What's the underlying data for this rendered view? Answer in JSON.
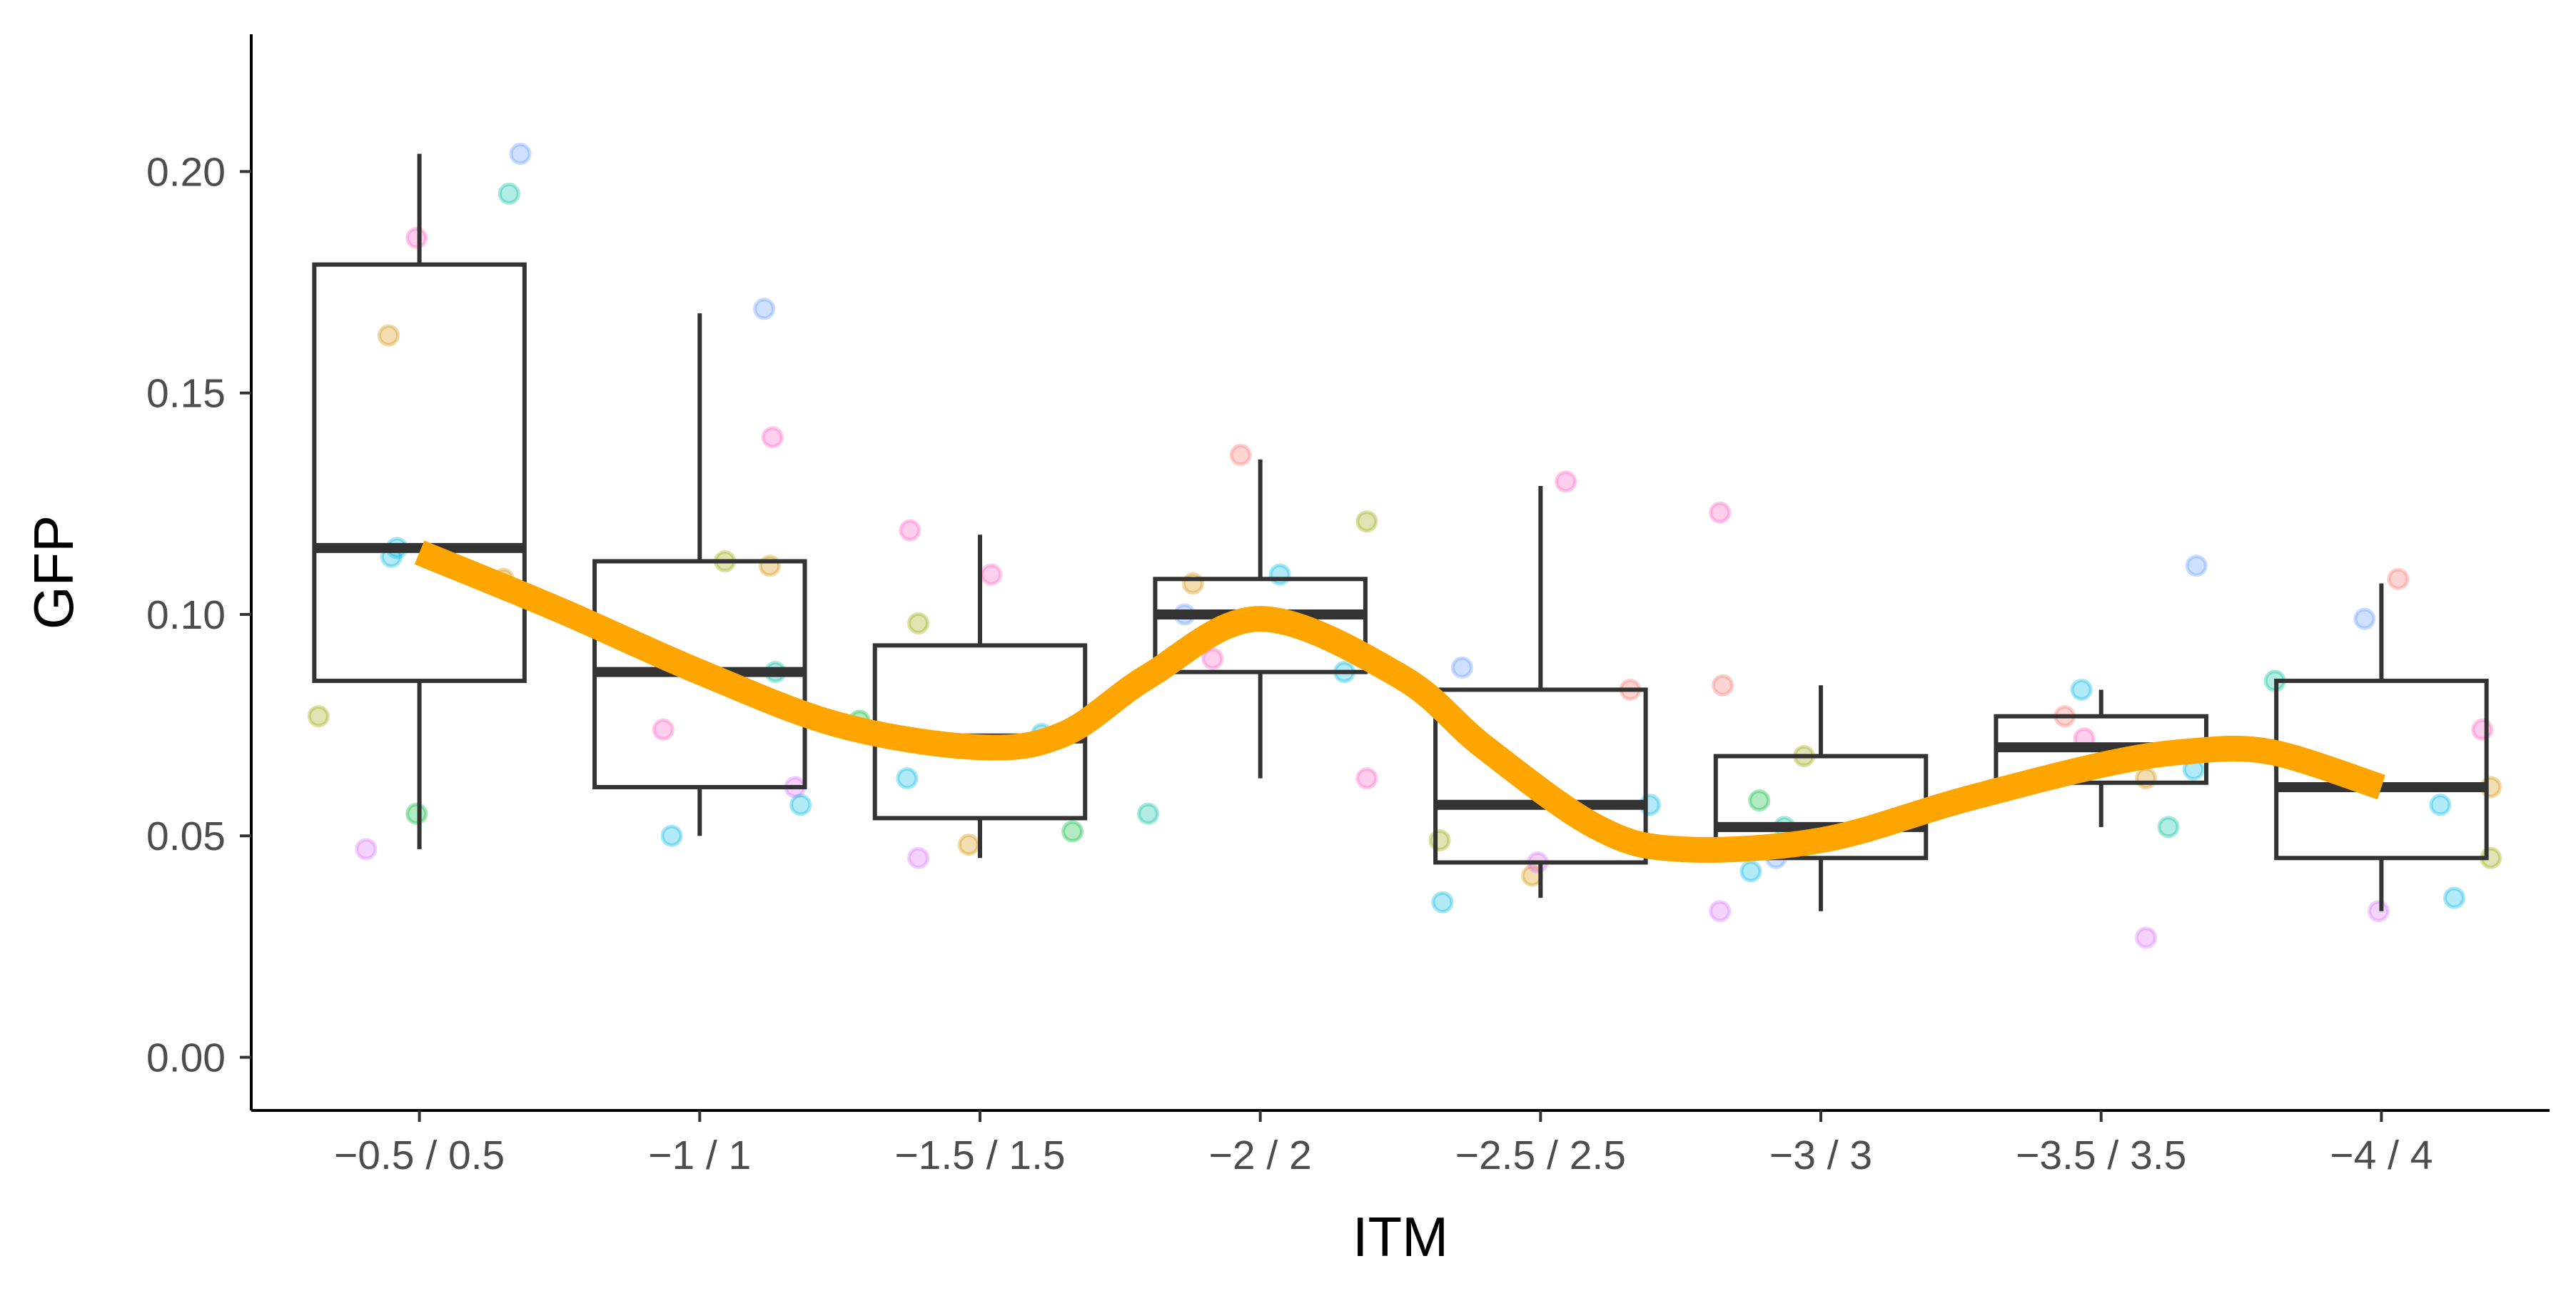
{
  "chart_data": {
    "type": "box",
    "xlabel": "ITM",
    "ylabel": "GFP",
    "ylim": [
      -0.012,
      0.231
    ],
    "y_ticks": [
      0.0,
      0.05,
      0.1,
      0.15,
      0.2
    ],
    "y_tick_labels": [
      "0.00",
      "0.05",
      "0.10",
      "0.15",
      "0.20"
    ],
    "grid": false,
    "legend": "none",
    "categories": [
      "−0.5 / 0.5",
      "−1 / 1",
      "−1.5 / 1.5",
      "−2 / 2",
      "−2.5 / 2.5",
      "−3 / 3",
      "−3.5 / 3.5",
      "−4 / 4"
    ],
    "boxes": [
      {
        "lower": 0.047,
        "q1": 0.085,
        "median": 0.115,
        "q3": 0.179,
        "upper": 0.204
      },
      {
        "lower": 0.05,
        "q1": 0.061,
        "median": 0.087,
        "q3": 0.112,
        "upper": 0.168
      },
      {
        "lower": 0.045,
        "q1": 0.054,
        "median": 0.072,
        "q3": 0.093,
        "upper": 0.118
      },
      {
        "lower": 0.063,
        "q1": 0.087,
        "median": 0.1,
        "q3": 0.108,
        "upper": 0.135
      },
      {
        "lower": 0.036,
        "q1": 0.044,
        "median": 0.057,
        "q3": 0.083,
        "upper": 0.129
      },
      {
        "lower": 0.033,
        "q1": 0.045,
        "median": 0.052,
        "q3": 0.068,
        "upper": 0.084
      },
      {
        "lower": 0.052,
        "q1": 0.062,
        "median": 0.07,
        "q3": 0.077,
        "upper": 0.083
      },
      {
        "lower": 0.033,
        "q1": 0.045,
        "median": 0.061,
        "q3": 0.085,
        "upper": 0.107
      }
    ],
    "point_colors": [
      "#F8766D",
      "#D39200",
      "#93AA00",
      "#00BA38",
      "#00C19F",
      "#00B9E3",
      "#619CFF",
      "#DB72FB",
      "#FF61C3"
    ],
    "points": [
      {
        "x": 0.64,
        "y": 0.077,
        "color": 2
      },
      {
        "x": 0.81,
        "y": 0.047,
        "color": 7
      },
      {
        "x": 0.89,
        "y": 0.163,
        "color": 1
      },
      {
        "x": 0.9,
        "y": 0.113,
        "color": 5
      },
      {
        "x": 0.92,
        "y": 0.115,
        "color": 5
      },
      {
        "x": 0.99,
        "y": 0.185,
        "color": 8
      },
      {
        "x": 0.99,
        "y": 0.055,
        "color": 3
      },
      {
        "x": 1.32,
        "y": 0.195,
        "color": 4
      },
      {
        "x": 1.36,
        "y": 0.204,
        "color": 6
      },
      {
        "x": 1.3,
        "y": 0.108,
        "color": 1
      },
      {
        "x": 1.87,
        "y": 0.074,
        "color": 8
      },
      {
        "x": 1.9,
        "y": 0.05,
        "color": 5
      },
      {
        "x": 2.09,
        "y": 0.112,
        "color": 2
      },
      {
        "x": 2.23,
        "y": 0.169,
        "color": 6
      },
      {
        "x": 2.25,
        "y": 0.111,
        "color": 1
      },
      {
        "x": 2.26,
        "y": 0.14,
        "color": 8
      },
      {
        "x": 2.27,
        "y": 0.087,
        "color": 4
      },
      {
        "x": 2.34,
        "y": 0.061,
        "color": 7
      },
      {
        "x": 2.36,
        "y": 0.057,
        "color": 5
      },
      {
        "x": 2.57,
        "y": 0.076,
        "color": 3
      },
      {
        "x": 2.75,
        "y": 0.119,
        "color": 8
      },
      {
        "x": 2.74,
        "y": 0.063,
        "color": 5
      },
      {
        "x": 2.78,
        "y": 0.098,
        "color": 2
      },
      {
        "x": 2.78,
        "y": 0.045,
        "color": 7
      },
      {
        "x": 2.96,
        "y": 0.048,
        "color": 1
      },
      {
        "x": 3.04,
        "y": 0.109,
        "color": 8
      },
      {
        "x": 3.2,
        "y": 0.071,
        "color": 6
      },
      {
        "x": 3.22,
        "y": 0.073,
        "color": 5
      },
      {
        "x": 3.33,
        "y": 0.051,
        "color": 3
      },
      {
        "x": 3.6,
        "y": 0.055,
        "color": 4
      },
      {
        "x": 3.76,
        "y": 0.107,
        "color": 1
      },
      {
        "x": 3.83,
        "y": 0.09,
        "color": 8
      },
      {
        "x": 3.93,
        "y": 0.136,
        "color": 0
      },
      {
        "x": 4.07,
        "y": 0.109,
        "color": 5
      },
      {
        "x": 4.3,
        "y": 0.087,
        "color": 5
      },
      {
        "x": 4.38,
        "y": 0.121,
        "color": 2
      },
      {
        "x": 4.38,
        "y": 0.063,
        "color": 8
      },
      {
        "x": 3.73,
        "y": 0.1,
        "color": 6
      },
      {
        "x": 4.64,
        "y": 0.049,
        "color": 2
      },
      {
        "x": 4.65,
        "y": 0.035,
        "color": 5
      },
      {
        "x": 4.72,
        "y": 0.088,
        "color": 6
      },
      {
        "x": 4.97,
        "y": 0.041,
        "color": 1
      },
      {
        "x": 4.99,
        "y": 0.044,
        "color": 7
      },
      {
        "x": 5.04,
        "y": 0.058,
        "color": 3
      },
      {
        "x": 5.09,
        "y": 0.13,
        "color": 8
      },
      {
        "x": 5.32,
        "y": 0.083,
        "color": 0
      },
      {
        "x": 5.39,
        "y": 0.057,
        "color": 5
      },
      {
        "x": 5.64,
        "y": 0.033,
        "color": 7
      },
      {
        "x": 5.64,
        "y": 0.123,
        "color": 8
      },
      {
        "x": 5.65,
        "y": 0.084,
        "color": 0
      },
      {
        "x": 5.75,
        "y": 0.042,
        "color": 5
      },
      {
        "x": 5.78,
        "y": 0.058,
        "color": 3
      },
      {
        "x": 5.84,
        "y": 0.045,
        "color": 6
      },
      {
        "x": 5.87,
        "y": 0.052,
        "color": 4
      },
      {
        "x": 5.94,
        "y": 0.068,
        "color": 2
      },
      {
        "x": 5.95,
        "y": 0.049,
        "color": 1
      },
      {
        "x": 6.87,
        "y": 0.077,
        "color": 0
      },
      {
        "x": 6.93,
        "y": 0.083,
        "color": 5
      },
      {
        "x": 6.94,
        "y": 0.072,
        "color": 8
      },
      {
        "x": 7.16,
        "y": 0.063,
        "color": 1
      },
      {
        "x": 7.16,
        "y": 0.027,
        "color": 7
      },
      {
        "x": 7.24,
        "y": 0.052,
        "color": 4
      },
      {
        "x": 7.33,
        "y": 0.065,
        "color": 5
      },
      {
        "x": 7.34,
        "y": 0.111,
        "color": 6
      },
      {
        "x": 7.62,
        "y": 0.085,
        "color": 4
      },
      {
        "x": 7.94,
        "y": 0.099,
        "color": 6
      },
      {
        "x": 7.99,
        "y": 0.033,
        "color": 7
      },
      {
        "x": 8.06,
        "y": 0.108,
        "color": 0
      },
      {
        "x": 8.21,
        "y": 0.057,
        "color": 5
      },
      {
        "x": 8.26,
        "y": 0.036,
        "color": 5
      },
      {
        "x": 8.36,
        "y": 0.074,
        "color": 8
      },
      {
        "x": 8.39,
        "y": 0.061,
        "color": 1
      },
      {
        "x": 8.39,
        "y": 0.045,
        "color": 2
      }
    ],
    "trend": {
      "color": "#FFA500",
      "x": [
        1.0,
        1.5,
        2.0,
        2.5,
        3.0,
        3.3,
        3.6,
        4.0,
        4.5,
        4.8,
        5.2,
        5.5,
        6.0,
        6.5,
        7.0,
        7.3,
        7.6,
        8.0
      ],
      "y": [
        0.114,
        0.101,
        0.087,
        0.075,
        0.07,
        0.073,
        0.086,
        0.099,
        0.086,
        0.07,
        0.052,
        0.047,
        0.049,
        0.058,
        0.066,
        0.069,
        0.069,
        0.061
      ]
    }
  }
}
